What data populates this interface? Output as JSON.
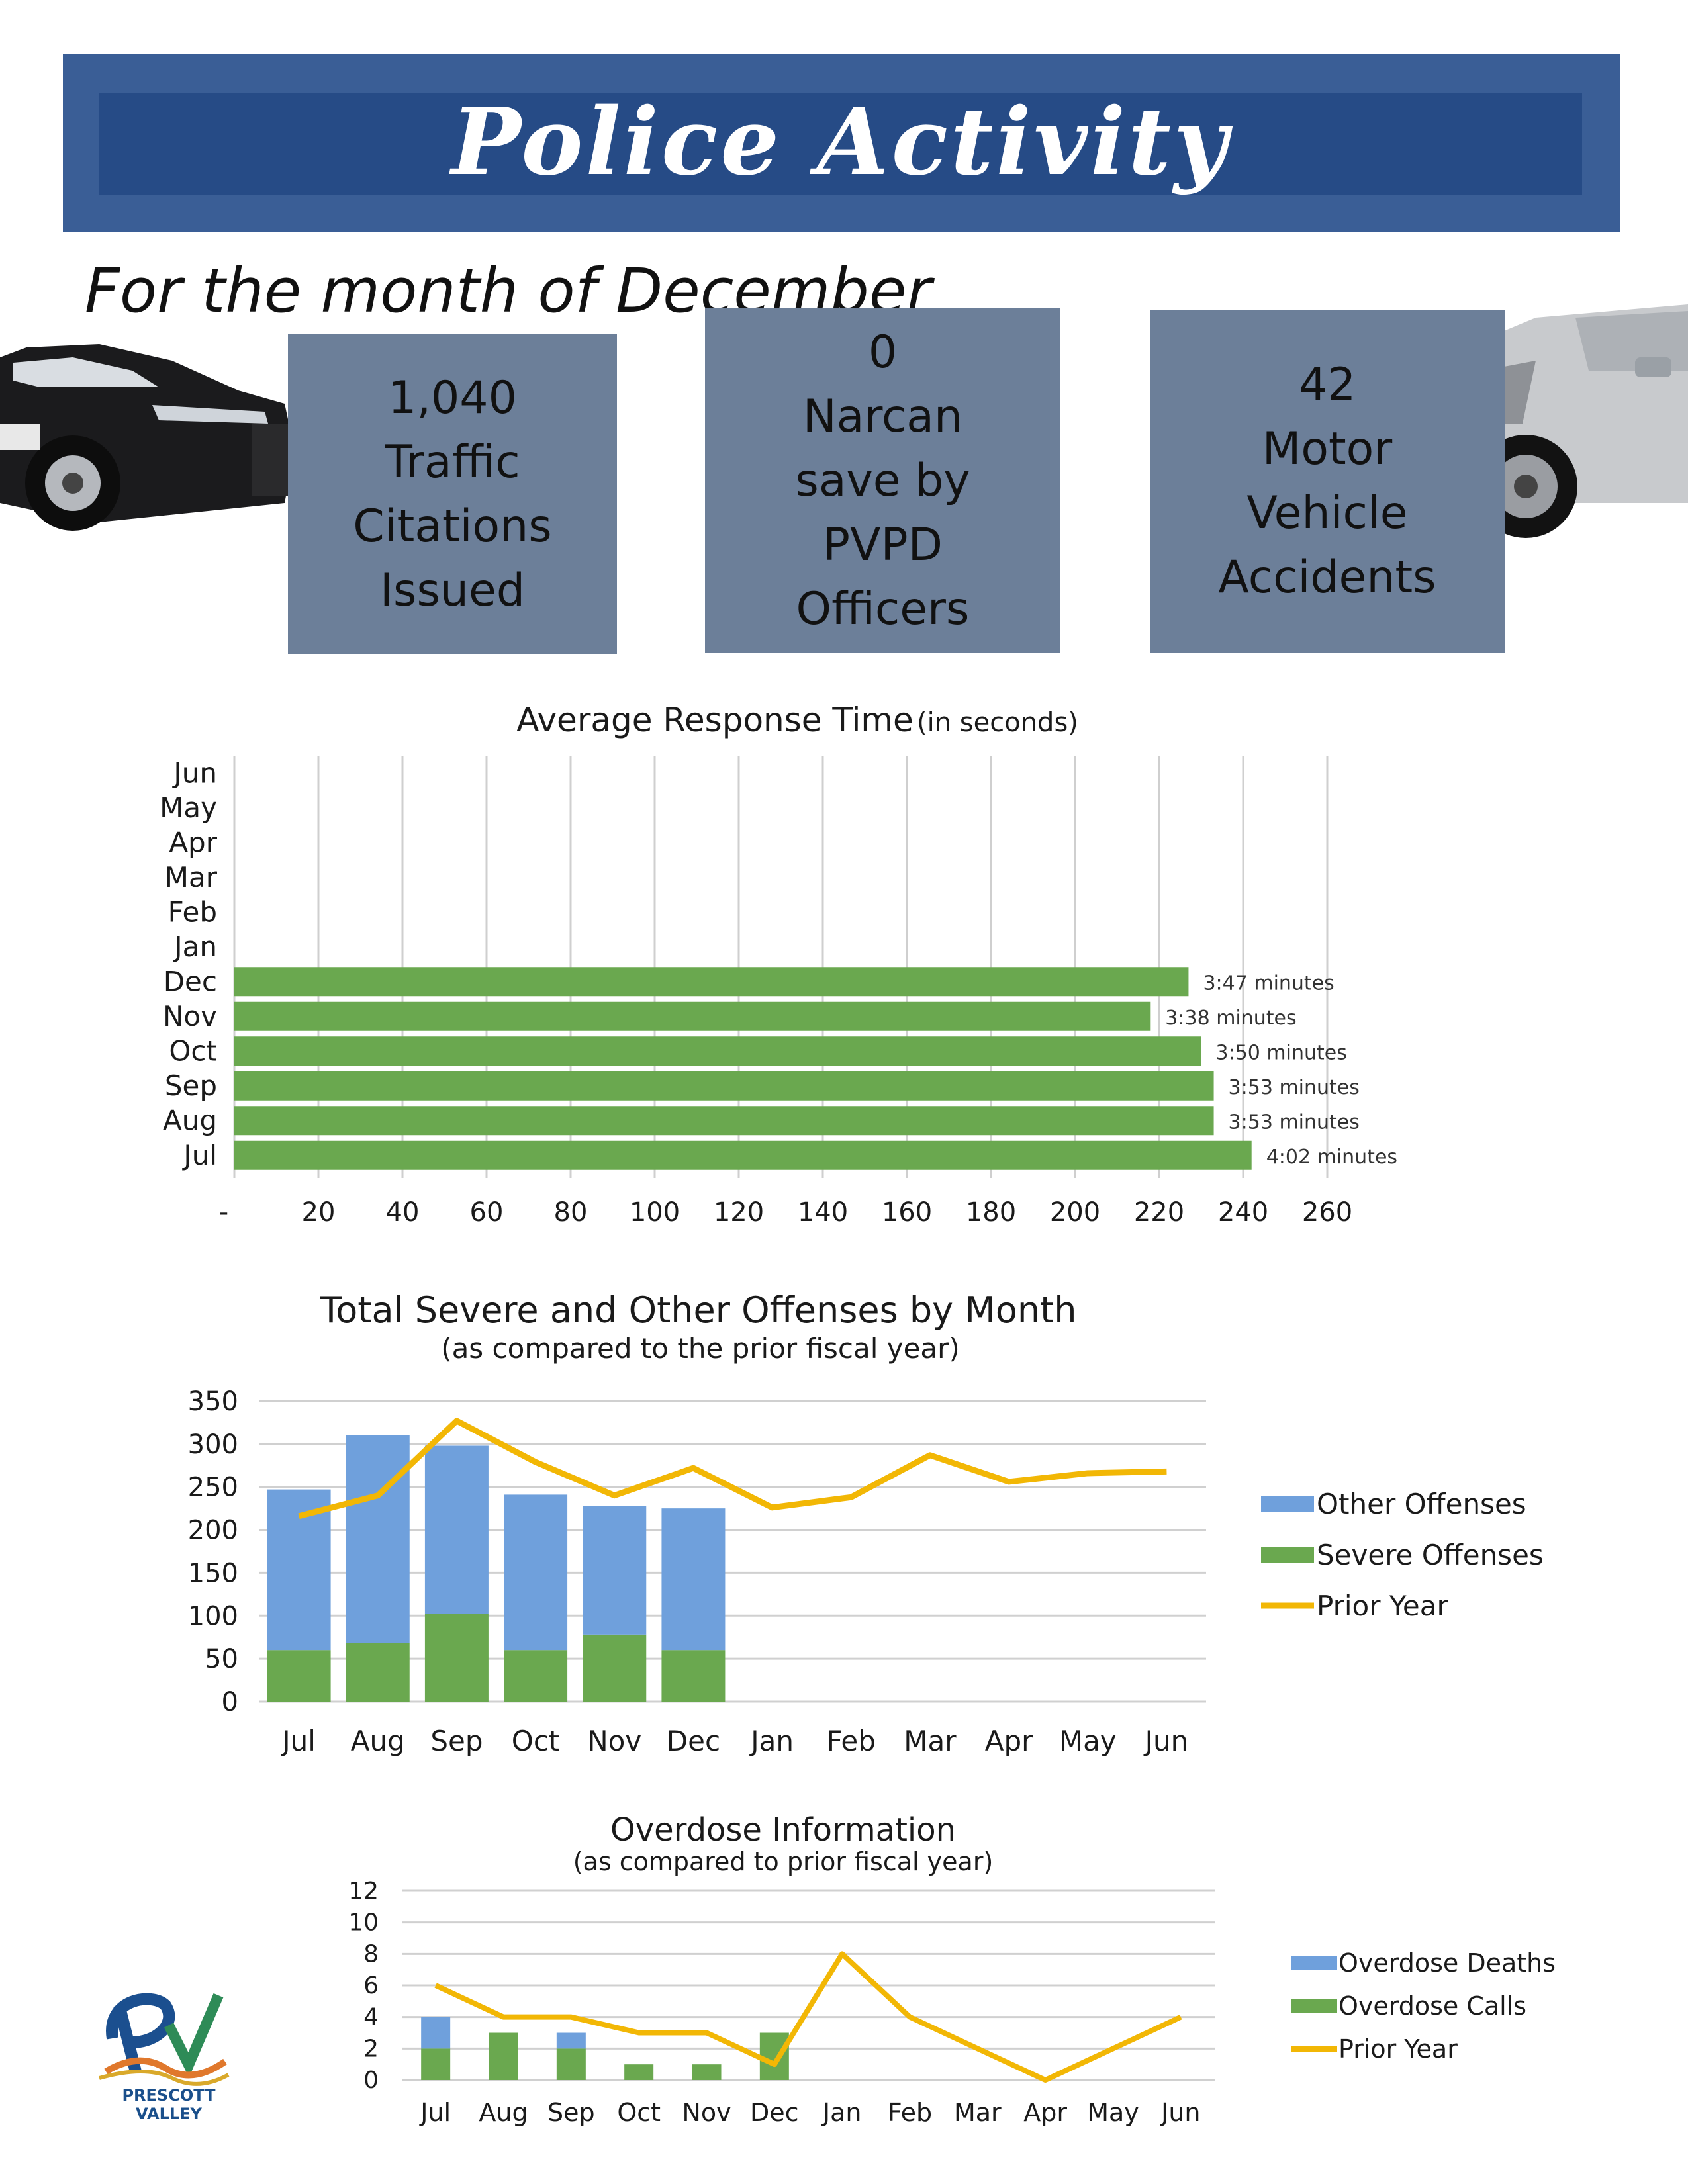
{
  "header": {
    "title": "Police Activity",
    "subtitle": "For the month of December"
  },
  "stats": [
    {
      "text": "1,040\nTraffic\nCitations\nIssued"
    },
    {
      "text": "0\nNarcan\nsave by\nPVPD\nOfficers"
    },
    {
      "text": "42\nMotor\nVehicle\nAccidents"
    }
  ],
  "images": {
    "left": "police-car",
    "right": "crashed-car"
  },
  "logo": {
    "text": "PRESCOTT VALLEY"
  },
  "colors": {
    "banner": "#3a5e96",
    "box": "#6c7f99",
    "green": "#6aa84f",
    "blue": "#6fa0dc",
    "gold": "#f2b705"
  },
  "chart_data": [
    {
      "type": "bar",
      "orientation": "horizontal",
      "title": "Average Response Time",
      "title_note": "(in seconds)",
      "categories": [
        "Jul",
        "Aug",
        "Sep",
        "Oct",
        "Nov",
        "Dec",
        "Jan",
        "Feb",
        "Mar",
        "Apr",
        "May",
        "Jun"
      ],
      "values": [
        242,
        233,
        233,
        230,
        218,
        227,
        null,
        null,
        null,
        null,
        null,
        null
      ],
      "data_labels": [
        "4:02 minutes",
        "3:53 minutes",
        "3:53 minutes",
        "3:50 minutes",
        "3:38 minutes",
        "3:47 minutes",
        "",
        "",
        "",
        "",
        "",
        ""
      ],
      "x_ticks": [
        "-",
        "20",
        "40",
        "60",
        "80",
        "100",
        "120",
        "140",
        "160",
        "180",
        "200",
        "220",
        "240",
        "260"
      ],
      "xlim": [
        0,
        260
      ],
      "grid": true
    },
    {
      "type": "bar",
      "stacked": true,
      "title": "Total Severe and Other Offenses by Month",
      "subtitle": "(as compared to the prior fiscal year)",
      "categories": [
        "Jul",
        "Aug",
        "Sep",
        "Oct",
        "Nov",
        "Dec",
        "Jan",
        "Feb",
        "Mar",
        "Apr",
        "May",
        "Jun"
      ],
      "series": [
        {
          "name": "Severe Offenses",
          "kind": "bar",
          "values": [
            60,
            68,
            102,
            60,
            78,
            60,
            null,
            null,
            null,
            null,
            null,
            null
          ]
        },
        {
          "name": "Other Offenses",
          "kind": "bar",
          "values": [
            187,
            242,
            196,
            181,
            150,
            165,
            null,
            null,
            null,
            null,
            null,
            null
          ]
        },
        {
          "name": "Prior Year",
          "kind": "line",
          "values": [
            216,
            240,
            327,
            279,
            240,
            272,
            226,
            238,
            287,
            256,
            266,
            268
          ]
        }
      ],
      "legend_order": [
        "Other Offenses",
        "Severe Offenses",
        "Prior Year"
      ],
      "y_ticks": [
        "0",
        "50",
        "100",
        "150",
        "200",
        "250",
        "300",
        "350"
      ],
      "ylim": [
        0,
        350
      ],
      "legend": "right",
      "grid": true
    },
    {
      "type": "bar",
      "stacked": true,
      "title": "Overdose Information",
      "subtitle": "(as compared to prior fiscal year)",
      "categories": [
        "Jul",
        "Aug",
        "Sep",
        "Oct",
        "Nov",
        "Dec",
        "Jan",
        "Feb",
        "Mar",
        "Apr",
        "May",
        "Jun"
      ],
      "series": [
        {
          "name": "Overdose Calls",
          "kind": "bar",
          "values": [
            2,
            3,
            2,
            1,
            1,
            3,
            null,
            null,
            null,
            null,
            null,
            null
          ]
        },
        {
          "name": "Overdose Deaths",
          "kind": "bar",
          "values": [
            2,
            0,
            1,
            0,
            0,
            0,
            null,
            null,
            null,
            null,
            null,
            null
          ]
        },
        {
          "name": "Prior Year",
          "kind": "line",
          "values": [
            6,
            4,
            4,
            3,
            3,
            1,
            8,
            4,
            2,
            0,
            2,
            4
          ]
        }
      ],
      "legend_order": [
        "Overdose Deaths",
        "Overdose Calls",
        "Prior Year"
      ],
      "y_ticks": [
        "0",
        "2",
        "4",
        "6",
        "8",
        "10",
        "12"
      ],
      "ylim": [
        0,
        12
      ],
      "legend": "right",
      "grid": true
    }
  ]
}
